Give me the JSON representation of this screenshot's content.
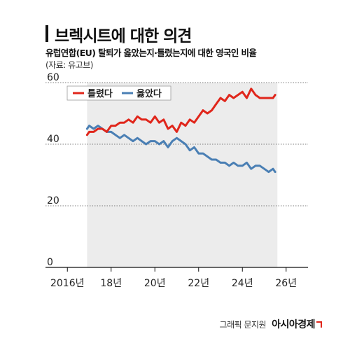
{
  "header": {
    "title": "브렉시트에 대한 의견",
    "subtitle": "유럽연합(EU) 탈퇴가 옳았는지·틀렸는지에 대한 영국인 비율",
    "source": "(자료: 유고브)"
  },
  "credit": {
    "text": "그래픽 문지원",
    "brand": "아시아경제"
  },
  "chart_data": {
    "type": "line",
    "title": "브렉시트에 대한 의견",
    "xlabel": "",
    "ylabel": "",
    "xlim": [
      2015,
      2027
    ],
    "ylim": [
      0,
      60
    ],
    "y_ticks": [
      0,
      20,
      40,
      60
    ],
    "x_ticks": [
      {
        "value": 2016,
        "label": "2016년"
      },
      {
        "value": 2018,
        "label": "18년"
      },
      {
        "value": 2020,
        "label": "20년"
      },
      {
        "value": 2022,
        "label": "22년"
      },
      {
        "value": 2024,
        "label": "24년"
      },
      {
        "value": 2026,
        "label": "26년"
      }
    ],
    "shaded_region": {
      "x_start": 2016.9,
      "x_end": 2025.6
    },
    "legend_position": "top-left",
    "series": [
      {
        "name": "틀렸다",
        "color": "#e0261b",
        "x": [
          2016.9,
          2017.0,
          2017.2,
          2017.4,
          2017.6,
          2017.8,
          2018.0,
          2018.2,
          2018.4,
          2018.6,
          2018.8,
          2019.0,
          2019.2,
          2019.4,
          2019.6,
          2019.8,
          2020.0,
          2020.2,
          2020.4,
          2020.6,
          2020.8,
          2021.0,
          2021.2,
          2021.4,
          2021.6,
          2021.8,
          2022.0,
          2022.2,
          2022.4,
          2022.6,
          2022.8,
          2023.0,
          2023.2,
          2023.4,
          2023.6,
          2023.8,
          2024.0,
          2024.2,
          2024.4,
          2024.6,
          2024.8,
          2025.0,
          2025.2,
          2025.4,
          2025.5
        ],
        "values": [
          43,
          44,
          44,
          45,
          45,
          44,
          46,
          46,
          47,
          47,
          48,
          47,
          49,
          48,
          48,
          47,
          49,
          47,
          48,
          45,
          46,
          44,
          47,
          46,
          48,
          47,
          49,
          51,
          50,
          51,
          53,
          55,
          54,
          56,
          55,
          56,
          57,
          55,
          58,
          56,
          55,
          55,
          55,
          55,
          56
        ]
      },
      {
        "name": "옳았다",
        "color": "#4a7fb4",
        "x": [
          2016.9,
          2017.0,
          2017.2,
          2017.4,
          2017.6,
          2017.8,
          2018.0,
          2018.2,
          2018.4,
          2018.6,
          2018.8,
          2019.0,
          2019.2,
          2019.4,
          2019.6,
          2019.8,
          2020.0,
          2020.2,
          2020.4,
          2020.6,
          2020.8,
          2021.0,
          2021.2,
          2021.4,
          2021.6,
          2021.8,
          2022.0,
          2022.2,
          2022.4,
          2022.6,
          2022.8,
          2023.0,
          2023.2,
          2023.4,
          2023.6,
          2023.8,
          2024.0,
          2024.2,
          2024.4,
          2024.6,
          2024.8,
          2025.0,
          2025.2,
          2025.4,
          2025.5
        ],
        "values": [
          45,
          46,
          45,
          46,
          45,
          44,
          44,
          43,
          42,
          43,
          42,
          41,
          42,
          41,
          40,
          41,
          41,
          40,
          41,
          39,
          41,
          42,
          41,
          40,
          38,
          39,
          37,
          37,
          36,
          35,
          35,
          34,
          34,
          33,
          34,
          33,
          33,
          34,
          32,
          33,
          33,
          32,
          31,
          32,
          31
        ]
      }
    ]
  }
}
